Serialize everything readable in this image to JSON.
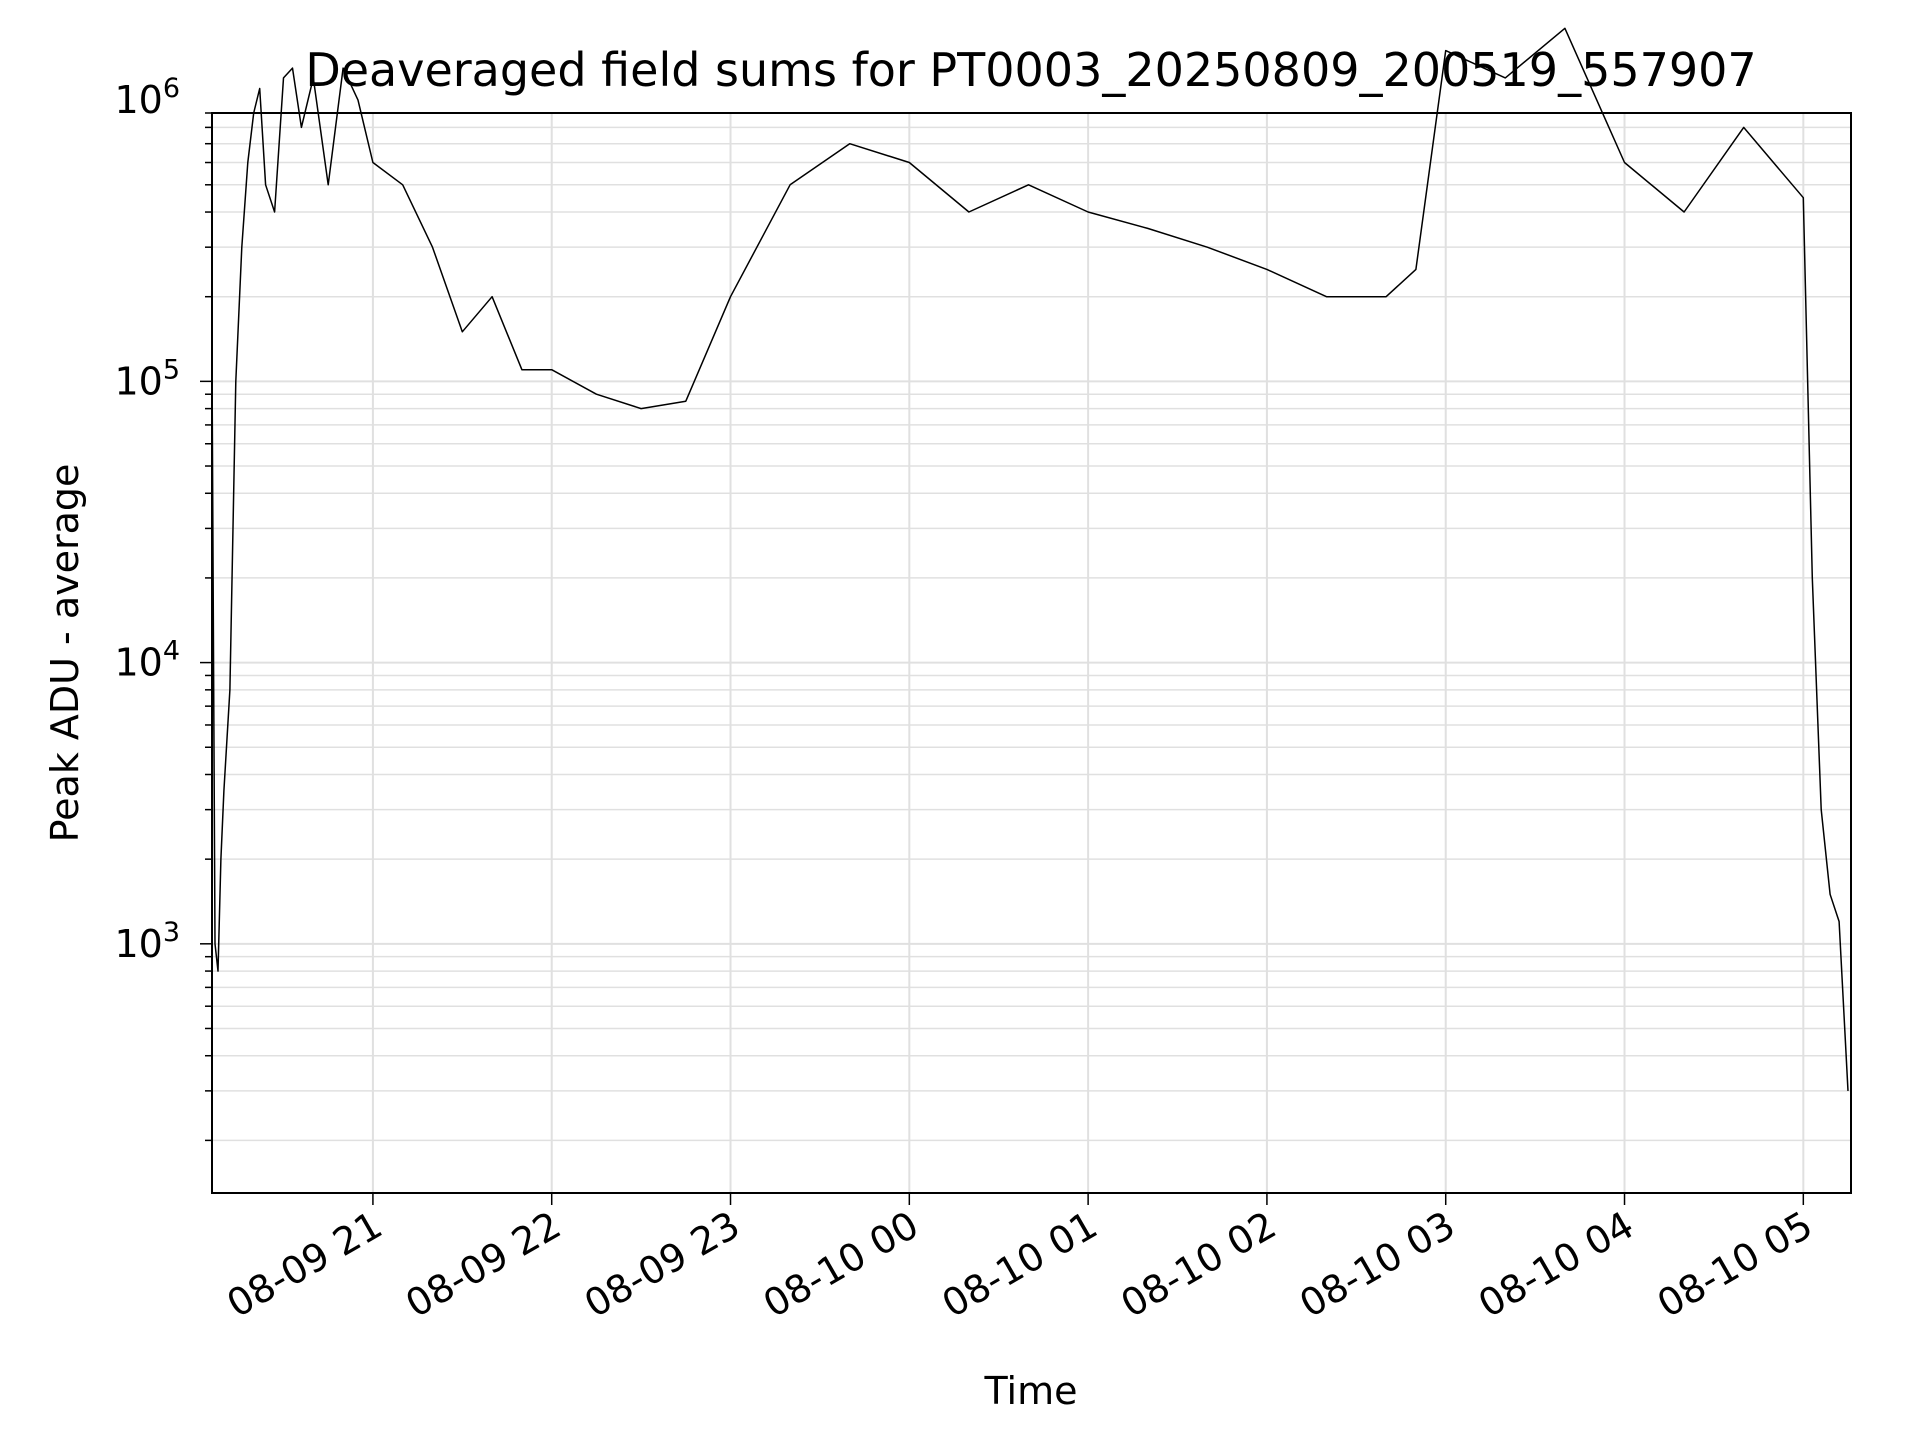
{
  "chart_data": {
    "type": "line",
    "title": "Deaveraged field sums for PT0003_20250809_200519_557907",
    "xlabel": "Time",
    "ylabel": "Peak ADU - average",
    "y_scale": "log",
    "grid": true,
    "line_color": "#000000",
    "grid_color": "#e0e0e0",
    "xlim": [
      "2025-08-09 20:06",
      "2025-08-10 05:16"
    ],
    "ylim": [
      130,
      900000
    ],
    "x_ticks": [
      {
        "value": "2025-08-09 21:00",
        "label": "08-09 21"
      },
      {
        "value": "2025-08-09 22:00",
        "label": "08-09 22"
      },
      {
        "value": "2025-08-09 23:00",
        "label": "08-09 23"
      },
      {
        "value": "2025-08-10 00:00",
        "label": "08-10 00"
      },
      {
        "value": "2025-08-10 01:00",
        "label": "08-10 01"
      },
      {
        "value": "2025-08-10 02:00",
        "label": "08-10 02"
      },
      {
        "value": "2025-08-10 03:00",
        "label": "08-10 03"
      },
      {
        "value": "2025-08-10 04:00",
        "label": "08-10 04"
      },
      {
        "value": "2025-08-10 05:00",
        "label": "08-10 05"
      }
    ],
    "y_ticks": [
      {
        "value": 1000,
        "base": "10",
        "exp": "3"
      },
      {
        "value": 10000,
        "base": "10",
        "exp": "4"
      },
      {
        "value": 100000,
        "base": "10",
        "exp": "5"
      },
      {
        "value": 1000000,
        "base": "10",
        "exp": "6"
      }
    ],
    "series": [
      {
        "x": [
          "2025-08-09 20:06",
          "2025-08-09 20:07",
          "2025-08-09 20:08",
          "2025-08-09 20:09",
          "2025-08-09 20:10",
          "2025-08-09 20:12",
          "2025-08-09 20:14",
          "2025-08-09 20:16",
          "2025-08-09 20:18",
          "2025-08-09 20:20",
          "2025-08-09 20:22",
          "2025-08-09 20:24",
          "2025-08-09 20:27",
          "2025-08-09 20:30",
          "2025-08-09 20:33",
          "2025-08-09 20:36",
          "2025-08-09 20:40",
          "2025-08-09 20:45",
          "2025-08-09 20:50",
          "2025-08-09 20:55",
          "2025-08-09 21:00",
          "2025-08-09 21:10",
          "2025-08-09 21:20",
          "2025-08-09 21:30",
          "2025-08-09 21:40",
          "2025-08-09 21:50",
          "2025-08-09 22:00",
          "2025-08-09 22:15",
          "2025-08-09 22:30",
          "2025-08-09 22:45",
          "2025-08-09 23:00",
          "2025-08-09 23:20",
          "2025-08-09 23:40",
          "2025-08-10 00:00",
          "2025-08-10 00:20",
          "2025-08-10 00:40",
          "2025-08-10 01:00",
          "2025-08-10 01:20",
          "2025-08-10 01:40",
          "2025-08-10 02:00",
          "2025-08-10 02:20",
          "2025-08-10 02:40",
          "2025-08-10 02:50",
          "2025-08-10 03:00",
          "2025-08-10 03:20",
          "2025-08-10 03:40",
          "2025-08-10 04:00",
          "2025-08-10 04:20",
          "2025-08-10 04:40",
          "2025-08-10 05:00",
          "2025-08-10 05:03",
          "2025-08-10 05:06",
          "2025-08-10 05:09",
          "2025-08-10 05:12",
          "2025-08-10 05:15"
        ],
        "y": [
          120000,
          1000,
          800,
          2000,
          3500,
          8000,
          100000,
          300000,
          600000,
          900000,
          1100000,
          500000,
          400000,
          1200000,
          1300000,
          800000,
          1200000,
          500000,
          1300000,
          1000000,
          600000,
          500000,
          300000,
          150000,
          200000,
          110000,
          110000,
          90000,
          80000,
          85000,
          200000,
          500000,
          700000,
          600000,
          400000,
          500000,
          400000,
          350000,
          300000,
          250000,
          200000,
          200000,
          250000,
          1500000,
          1200000,
          1800000,
          600000,
          400000,
          800000,
          450000,
          20000,
          3000,
          1500,
          1200,
          300
        ]
      }
    ]
  }
}
